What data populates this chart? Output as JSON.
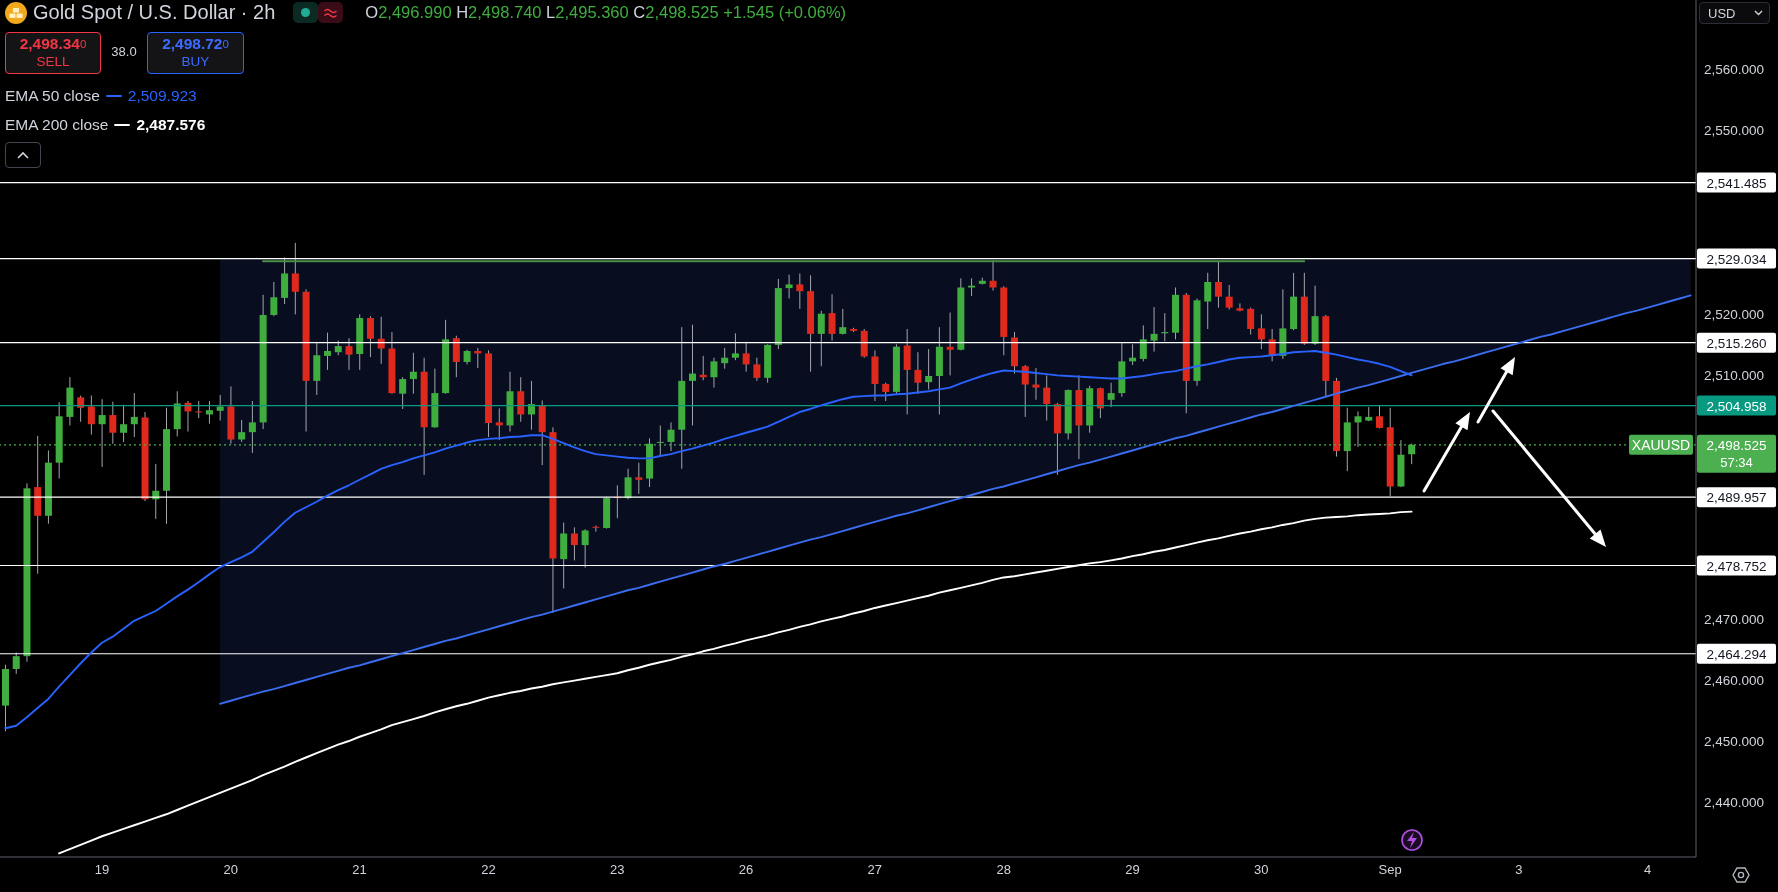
{
  "chart_data": {
    "type": "candlestick",
    "title": "Gold Spot / U.S. Dollar · 2h",
    "ylabel": "USD",
    "categories": [
      null,
      null,
      null,
      null,
      null,
      null,
      null,
      null,
      null,
      "19",
      null,
      null,
      null,
      null,
      null,
      null,
      null,
      null,
      null,
      null,
      null,
      "20",
      null,
      null,
      null,
      null,
      null,
      null,
      null,
      null,
      null,
      null,
      null,
      "21",
      null,
      null,
      null,
      null,
      null,
      null,
      null,
      null,
      null,
      null,
      null,
      "22",
      null,
      null,
      null,
      null,
      null,
      null,
      null,
      null,
      null,
      null,
      null,
      "23",
      null,
      null,
      null,
      null,
      null,
      null,
      null,
      null,
      null,
      null,
      null,
      "26",
      null,
      null,
      null,
      null,
      null,
      null,
      null,
      null,
      null,
      null,
      null,
      "27",
      null,
      null,
      null,
      null,
      null,
      null,
      null,
      null,
      null,
      null,
      null,
      "28",
      null,
      null,
      null,
      null,
      null,
      null,
      null,
      null,
      null,
      null,
      null,
      "29",
      null,
      null,
      null,
      null,
      null,
      null,
      null,
      null,
      null,
      null,
      null,
      "30",
      null,
      null,
      null,
      null,
      null,
      null,
      null,
      null,
      null,
      null,
      null,
      "Sep",
      null,
      null,
      null,
      null,
      null,
      null,
      null,
      null,
      null,
      null,
      null,
      "3",
      null,
      null,
      null,
      null,
      null,
      null,
      null,
      null,
      null,
      null,
      null,
      "4",
      null,
      null,
      null,
      null
    ],
    "ohlc": [
      [
        2455.8,
        2462.5,
        2451.6,
        2461.8
      ],
      [
        2461.8,
        2464.5,
        2461.0,
        2463.9
      ],
      [
        2463.9,
        2492.2,
        2463.0,
        2491.4
      ],
      [
        2491.6,
        2500.0,
        2477.4,
        2486.9
      ],
      [
        2486.9,
        2497.6,
        2485.6,
        2495.6
      ],
      [
        2495.6,
        2505.5,
        2493.0,
        2503.2
      ],
      [
        2503.1,
        2509.6,
        2501.7,
        2507.9
      ],
      [
        2506.3,
        2506.6,
        2502.3,
        2504.6
      ],
      [
        2504.8,
        2506.6,
        2500.2,
        2501.9
      ],
      [
        2501.9,
        2506.0,
        2494.9,
        2503.4
      ],
      [
        2503.4,
        2505.6,
        2498.7,
        2500.5
      ],
      [
        2500.5,
        2505.1,
        2499.0,
        2501.9
      ],
      [
        2501.9,
        2507.0,
        2499.8,
        2503.1
      ],
      [
        2503.0,
        2503.9,
        2489.3,
        2489.6
      ],
      [
        2489.6,
        2495.4,
        2486.4,
        2491.0
      ],
      [
        2491.0,
        2504.6,
        2485.6,
        2501.1
      ],
      [
        2501.1,
        2507.3,
        2499.9,
        2505.3
      ],
      [
        2505.4,
        2505.7,
        2500.7,
        2504.0
      ],
      [
        2504.0,
        2505.7,
        2502.9,
        2503.9
      ],
      [
        2503.5,
        2505.7,
        2502.0,
        2504.2
      ],
      [
        2504.1,
        2506.7,
        2502.5,
        2504.8
      ],
      [
        2504.8,
        2508.1,
        2498.7,
        2499.4
      ],
      [
        2499.4,
        2502.6,
        2499.0,
        2500.6
      ],
      [
        2500.6,
        2505.7,
        2497.2,
        2502.2
      ],
      [
        2502.2,
        2523.1,
        2501.1,
        2519.8
      ],
      [
        2519.8,
        2525.2,
        2519.6,
        2522.7
      ],
      [
        2522.6,
        2529.2,
        2521.6,
        2526.6
      ],
      [
        2526.6,
        2531.6,
        2519.9,
        2523.6
      ],
      [
        2523.6,
        2524.0,
        2500.7,
        2509.0
      ],
      [
        2509.0,
        2515.4,
        2506.7,
        2513.2
      ],
      [
        2513.1,
        2516.9,
        2510.8,
        2513.9
      ],
      [
        2513.7,
        2515.6,
        2513.2,
        2514.7
      ],
      [
        2514.7,
        2516.0,
        2510.8,
        2513.3
      ],
      [
        2513.4,
        2519.9,
        2510.8,
        2519.3
      ],
      [
        2519.3,
        2519.6,
        2512.9,
        2515.9
      ],
      [
        2515.9,
        2519.5,
        2511.8,
        2514.3
      ],
      [
        2514.3,
        2517.0,
        2506.9,
        2507.0
      ],
      [
        2506.9,
        2509.6,
        2504.4,
        2509.3
      ],
      [
        2509.3,
        2513.6,
        2506.9,
        2510.5
      ],
      [
        2510.5,
        2512.8,
        2493.6,
        2501.4
      ],
      [
        2501.4,
        2511.0,
        2501.3,
        2507.0
      ],
      [
        2507.0,
        2519.0,
        2506.9,
        2515.8
      ],
      [
        2516.0,
        2516.4,
        2509.6,
        2512.1
      ],
      [
        2512.1,
        2514.1,
        2511.7,
        2513.9
      ],
      [
        2513.9,
        2514.4,
        2511.1,
        2513.5
      ],
      [
        2513.5,
        2514.0,
        2499.8,
        2502.1
      ],
      [
        2502.2,
        2504.5,
        2499.3,
        2501.7
      ],
      [
        2501.7,
        2510.5,
        2500.7,
        2507.3
      ],
      [
        2507.3,
        2509.6,
        2502.3,
        2503.5
      ],
      [
        2503.5,
        2509.0,
        2501.0,
        2505.2
      ],
      [
        2505.0,
        2505.8,
        2495.2,
        2500.6
      ],
      [
        2500.6,
        2501.4,
        2471.0,
        2479.9
      ],
      [
        2479.8,
        2485.8,
        2475.0,
        2484.0
      ],
      [
        2484.0,
        2485.0,
        2479.6,
        2482.1
      ],
      [
        2482.1,
        2484.7,
        2478.4,
        2484.5
      ],
      [
        2485.1,
        2485.3,
        2484.3,
        2485.0
      ],
      [
        2484.9,
        2490.0,
        2484.8,
        2489.8
      ],
      [
        2490.0,
        2491.9,
        2486.5,
        2489.8
      ],
      [
        2489.8,
        2494.6,
        2489.6,
        2493.2
      ],
      [
        2493.2,
        2495.6,
        2490.5,
        2492.8
      ],
      [
        2493.0,
        2499.6,
        2491.6,
        2498.7
      ],
      [
        2498.9,
        2501.7,
        2496.6,
        2499.0
      ],
      [
        2499.0,
        2502.2,
        2497.5,
        2501.0
      ],
      [
        2501.0,
        2517.8,
        2494.6,
        2509.0
      ],
      [
        2509.0,
        2518.2,
        2501.7,
        2510.2
      ],
      [
        2510.0,
        2513.1,
        2509.1,
        2509.6
      ],
      [
        2509.6,
        2512.8,
        2507.9,
        2512.2
      ],
      [
        2511.9,
        2514.4,
        2511.0,
        2512.8
      ],
      [
        2512.8,
        2516.8,
        2512.4,
        2513.5
      ],
      [
        2513.5,
        2515.4,
        2510.5,
        2511.7
      ],
      [
        2511.7,
        2512.8,
        2509.0,
        2509.5
      ],
      [
        2509.5,
        2515.0,
        2508.7,
        2514.9
      ],
      [
        2514.9,
        2525.7,
        2514.2,
        2524.2
      ],
      [
        2524.2,
        2526.4,
        2522.5,
        2524.8
      ],
      [
        2524.8,
        2526.6,
        2520.8,
        2523.7
      ],
      [
        2523.7,
        2526.3,
        2510.5,
        2516.7
      ],
      [
        2516.7,
        2520.5,
        2511.4,
        2520.0
      ],
      [
        2520.1,
        2523.2,
        2515.6,
        2516.7
      ],
      [
        2516.7,
        2520.8,
        2516.6,
        2517.8
      ],
      [
        2517.5,
        2517.7,
        2517.0,
        2517.2
      ],
      [
        2517.2,
        2517.5,
        2512.8,
        2513.0
      ],
      [
        2513.0,
        2514.0,
        2505.7,
        2508.5
      ],
      [
        2508.5,
        2508.7,
        2505.7,
        2507.2
      ],
      [
        2507.2,
        2515.0,
        2506.9,
        2514.6
      ],
      [
        2514.8,
        2517.5,
        2503.5,
        2510.8
      ],
      [
        2510.8,
        2513.7,
        2506.9,
        2508.7
      ],
      [
        2508.8,
        2514.2,
        2507.6,
        2509.8
      ],
      [
        2509.8,
        2517.8,
        2503.5,
        2514.6
      ],
      [
        2514.6,
        2520.2,
        2509.9,
        2514.1
      ],
      [
        2514.1,
        2525.8,
        2514.0,
        2524.3
      ],
      [
        2524.3,
        2525.8,
        2522.9,
        2524.6
      ],
      [
        2524.9,
        2525.9,
        2524.8,
        2525.4
      ],
      [
        2525.4,
        2528.8,
        2523.8,
        2524.3
      ],
      [
        2524.3,
        2524.5,
        2513.2,
        2516.2
      ],
      [
        2516.1,
        2517.0,
        2510.2,
        2511.4
      ],
      [
        2511.4,
        2511.6,
        2503.1,
        2508.4
      ],
      [
        2508.4,
        2511.1,
        2505.9,
        2507.9
      ],
      [
        2507.9,
        2509.9,
        2502.5,
        2505.2
      ],
      [
        2505.2,
        2505.4,
        2493.6,
        2500.4
      ],
      [
        2500.4,
        2507.6,
        2499.4,
        2507.5
      ],
      [
        2507.5,
        2509.9,
        2496.2,
        2501.7
      ],
      [
        2501.7,
        2508.2,
        2500.5,
        2507.8
      ],
      [
        2507.8,
        2507.9,
        2502.9,
        2504.5
      ],
      [
        2505.9,
        2508.7,
        2504.7,
        2507.0
      ],
      [
        2507.0,
        2515.2,
        2506.4,
        2512.2
      ],
      [
        2512.2,
        2515.0,
        2511.6,
        2512.8
      ],
      [
        2512.6,
        2518.1,
        2512.2,
        2515.8
      ],
      [
        2515.6,
        2521.1,
        2513.8,
        2516.7
      ],
      [
        2516.8,
        2520.1,
        2515.5,
        2517.0
      ],
      [
        2516.9,
        2524.3,
        2515.8,
        2523.1
      ],
      [
        2523.1,
        2523.4,
        2503.7,
        2509.0
      ],
      [
        2509.0,
        2522.5,
        2508.2,
        2522.2
      ],
      [
        2522.0,
        2526.7,
        2517.5,
        2525.2
      ],
      [
        2525.2,
        2528.5,
        2521.0,
        2522.8
      ],
      [
        2522.8,
        2524.7,
        2520.7,
        2521.0
      ],
      [
        2520.9,
        2521.7,
        2520.4,
        2520.5
      ],
      [
        2520.8,
        2521.0,
        2516.6,
        2517.5
      ],
      [
        2517.6,
        2519.9,
        2514.2,
        2515.8
      ],
      [
        2515.8,
        2517.5,
        2512.2,
        2513.1
      ],
      [
        2513.1,
        2524.0,
        2512.6,
        2517.6
      ],
      [
        2517.5,
        2526.7,
        2517.3,
        2522.8
      ],
      [
        2522.8,
        2526.7,
        2514.9,
        2515.1
      ],
      [
        2515.1,
        2524.6,
        2514.9,
        2519.6
      ],
      [
        2519.6,
        2519.8,
        2506.4,
        2509.0
      ],
      [
        2509.0,
        2509.5,
        2496.6,
        2497.5
      ],
      [
        2497.5,
        2504.6,
        2494.2,
        2502.2
      ],
      [
        2502.2,
        2504.0,
        2498.2,
        2503.2
      ],
      [
        2502.5,
        2504.7,
        2502.4,
        2503.1
      ],
      [
        2503.2,
        2504.9,
        2501.2,
        2501.3
      ],
      [
        2501.4,
        2504.6,
        2490.1,
        2491.7
      ],
      [
        2491.7,
        2499.3,
        2491.6,
        2496.9
      ],
      [
        2496.99,
        2498.74,
        2495.36,
        2498.525
      ],
      null,
      null,
      null,
      null,
      null,
      null,
      null,
      null,
      null,
      null,
      null,
      null,
      null,
      null,
      null,
      null,
      null,
      null,
      null,
      null,
      null,
      null,
      null,
      null,
      null,
      null
    ],
    "colors": [
      "#3fae3f",
      "#3fae3f",
      "#3fae3f",
      "#e0291d",
      "#3fae3f",
      "#3fae3f",
      "#3fae3f",
      "#e0291d",
      "#e0291d",
      "#3fae3f",
      "#e0291d",
      "#3fae3f",
      "#3fae3f",
      "#e0291d",
      "#3fae3f",
      "#3fae3f",
      "#3fae3f",
      "#e0291d",
      "#e0291d",
      "#3fae3f",
      "#3fae3f",
      "#e0291d",
      "#3fae3f",
      "#3fae3f",
      "#3fae3f",
      "#3fae3f",
      "#3fae3f",
      "#e0291d",
      "#e0291d",
      "#3fae3f",
      "#3fae3f",
      "#3fae3f",
      "#e0291d",
      "#3fae3f",
      "#e0291d",
      "#e0291d",
      "#e0291d",
      "#3fae3f",
      "#3fae3f",
      "#e0291d",
      "#3fae3f",
      "#3fae3f",
      "#e0291d",
      "#3fae3f",
      "#e0291d",
      "#e0291d",
      "#e0291d",
      "#3fae3f",
      "#e0291d",
      "#3fae3f",
      "#e0291d",
      "#e0291d",
      "#3fae3f",
      "#e0291d",
      "#3fae3f",
      "#e0291d",
      "#3fae3f",
      "#e0291d",
      "#3fae3f",
      "#e0291d",
      "#3fae3f",
      "#3fae3f",
      "#3fae3f",
      "#3fae3f",
      "#3fae3f",
      "#e0291d",
      "#3fae3f",
      "#3fae3f",
      "#3fae3f",
      "#e0291d",
      "#e0291d",
      "#3fae3f",
      "#3fae3f",
      "#3fae3f",
      "#e0291d",
      "#e0291d",
      "#3fae3f",
      "#e0291d",
      "#3fae3f",
      "#e0291d",
      "#e0291d",
      "#e0291d",
      "#e0291d",
      "#3fae3f",
      "#e0291d",
      "#e0291d",
      "#3fae3f",
      "#3fae3f",
      "#e0291d",
      "#3fae3f",
      "#3fae3f",
      "#3fae3f",
      "#e0291d",
      "#e0291d",
      "#e0291d",
      "#e0291d",
      "#e0291d",
      "#e0291d",
      "#e0291d",
      "#3fae3f",
      "#e0291d",
      "#3fae3f",
      "#e0291d",
      "#3fae3f",
      "#3fae3f",
      "#3fae3f",
      "#3fae3f",
      "#3fae3f",
      "#3fae3f",
      "#3fae3f",
      "#e0291d",
      "#3fae3f",
      "#3fae3f",
      "#e0291d",
      "#e0291d",
      "#e0291d",
      "#e0291d",
      "#e0291d",
      "#e0291d",
      "#3fae3f",
      "#3fae3f",
      "#e0291d",
      "#3fae3f",
      "#e0291d",
      "#e0291d",
      "#3fae3f",
      "#3fae3f",
      "#3fae3f",
      "#e0291d",
      "#e0291d",
      "#3fae3f",
      "#3fae3f",
      null,
      null,
      null,
      null,
      null,
      null,
      null,
      null,
      null,
      null,
      null,
      null,
      null,
      null,
      null,
      null,
      null,
      null,
      null,
      null,
      null,
      null,
      null,
      null,
      null,
      null
    ],
    "series": [
      {
        "type": "line",
        "color": "#3a6df0",
        "values": [
          null,
          null,
          null,
          null,
          null,
          null,
          null,
          null,
          null,
          null,
          null,
          null,
          null,
          null,
          null,
          null,
          null,
          null,
          null,
          null,
          2456.1,
          2456.6,
          2457.1,
          2457.6,
          2458.1,
          2458.5,
          2459.0,
          2459.5,
          2460.0,
          2460.5,
          2461.0,
          2461.5,
          2462.0,
          2462.4,
          2462.9,
          2463.4,
          2463.9,
          2464.4,
          2464.9,
          2465.4,
          2465.9,
          2466.4,
          2466.8,
          2467.3,
          2467.8,
          2468.3,
          2468.8,
          2469.3,
          2469.8,
          2470.3,
          2470.7,
          2471.2,
          2471.7,
          2472.2,
          2472.7,
          2473.2,
          2473.7,
          2474.2,
          2474.7,
          2475.1,
          2475.6,
          2476.1,
          2476.6,
          2477.1,
          2477.6,
          2478.1,
          2478.6,
          2479.0,
          2479.5,
          2480.0,
          2480.5,
          2481.0,
          2481.5,
          2482.0,
          2482.5,
          2483.0,
          2483.4,
          2483.9,
          2484.4,
          2484.9,
          2485.4,
          2485.9,
          2486.4,
          2486.9,
          2487.3,
          2487.8,
          2488.3,
          2488.8,
          2489.3,
          2489.8,
          2490.3,
          2490.8,
          2491.3,
          2491.7,
          2492.2,
          2492.7,
          2493.2,
          2493.7,
          2494.2,
          2494.7,
          2495.2,
          2495.6,
          2496.1,
          2496.6,
          2497.1,
          2497.6,
          2498.1,
          2498.6,
          2499.1,
          2499.6,
          2500.0,
          2500.5,
          2501.0,
          2501.5,
          2502.0,
          2502.5,
          2503.0,
          2503.5,
          2503.9,
          2504.4,
          2504.9,
          2505.4,
          2505.9,
          2506.4,
          2506.9,
          2507.4,
          2507.9,
          2508.3,
          2508.8,
          2509.3,
          2509.8,
          2510.3,
          2510.8,
          2511.3,
          2511.8,
          2512.2,
          2512.7,
          2513.2,
          2513.7,
          2514.2,
          2514.7,
          2515.2,
          2515.7,
          2516.2,
          2516.6,
          2517.1,
          2517.6,
          2518.1,
          2518.6,
          2519.1,
          2519.6,
          2520.1,
          2520.5,
          2521.0,
          2521.5,
          2522.0,
          2522.5,
          2523.0
        ],
        "lower": [
          null,
          null,
          null,
          null,
          null,
          null,
          null,
          null,
          null,
          null,
          null,
          null,
          null,
          null,
          null,
          null,
          null,
          null,
          null,
          null,
          2456.1,
          2456.6,
          2457.1,
          2457.6,
          2458.1,
          2458.5,
          2459.0,
          2459.5,
          2460.0,
          2460.5,
          2461.0,
          2461.5,
          2462.0,
          2462.4,
          2462.9,
          2463.4,
          2463.9,
          2464.4,
          2464.9,
          2465.4,
          2465.9,
          2466.4,
          2466.8,
          2467.3,
          2467.8,
          2468.3,
          2468.8,
          2469.3,
          2469.8,
          2470.3,
          2470.7,
          2471.2,
          2471.7,
          2472.2,
          2472.7,
          2473.2,
          2473.7,
          2474.2,
          2474.7,
          2475.1,
          2475.6,
          2476.1,
          2476.6,
          2477.1,
          2477.6,
          2478.1,
          2478.6,
          2479.0,
          2479.5,
          2480.0,
          2480.5,
          2481.0,
          2481.5,
          2482.0,
          2482.5,
          2483.0,
          2483.4,
          2483.9,
          2484.4,
          2484.9,
          2485.4,
          2485.9,
          2486.4,
          2486.9,
          2487.3,
          2487.8,
          2488.3,
          2488.8,
          2489.3,
          2489.8,
          2490.3,
          2490.8,
          2491.3,
          2491.7,
          2492.2,
          2492.7,
          2493.2,
          2493.7,
          2494.2,
          2494.7,
          2495.2,
          2495.6,
          2496.1,
          2496.6,
          2497.1,
          2497.6,
          2498.1,
          2498.6,
          2499.1,
          2499.6,
          2500.0,
          2500.5,
          2501.0,
          2501.5,
          2502.0,
          2502.5,
          2503.0,
          2503.5,
          2503.9,
          2504.4,
          2504.9,
          2505.4,
          2505.9,
          2506.4,
          2506.9,
          2507.4,
          2507.9,
          2508.3,
          2508.8,
          2509.3,
          2509.8,
          2510.3,
          2510.8,
          2511.3,
          2511.8,
          2512.2,
          2512.7,
          2513.2,
          2513.7,
          2514.2,
          2514.7,
          2515.2,
          2515.7,
          2516.2,
          2516.6,
          2517.1,
          2517.6,
          2518.1,
          2518.6,
          2519.1,
          2519.6,
          2520.1,
          2520.5,
          2521.0,
          2521.5,
          2522.0,
          2522.5,
          2523.0
        ],
        "upper": [
          null,
          null,
          null,
          null,
          null,
          null,
          null,
          null,
          null,
          null,
          null,
          null,
          null,
          null,
          null,
          null,
          null,
          null,
          null,
          null,
          2529.0,
          2529.0,
          2529.0,
          2529.0,
          2529.0,
          2529.0,
          2529.0,
          2529.0,
          2529.0,
          2529.0,
          2529.0,
          2529.0,
          2529.0,
          2529.0,
          2529.0,
          2529.0,
          2529.0,
          2529.0,
          2529.0,
          2529.0,
          2529.0,
          2529.0,
          2529.0,
          2529.0,
          2529.0,
          2529.0,
          2529.0,
          2529.0,
          2529.0,
          2529.0,
          2529.0,
          2529.0,
          2529.0,
          2529.0,
          2529.0,
          2529.0,
          2529.0,
          2529.0,
          2529.0,
          2529.0,
          2529.0,
          2529.0,
          2529.0,
          2529.0,
          2529.0,
          2529.0,
          2529.0,
          2529.0,
          2529.0,
          2529.0,
          2529.0,
          2529.0,
          2529.0,
          2529.0,
          2529.0,
          2529.0,
          2529.0,
          2529.0,
          2529.0,
          2529.0,
          2529.0,
          2529.0,
          2529.0,
          2529.0,
          2529.0,
          2529.0,
          2529.0,
          2529.0,
          2529.0,
          2529.0,
          2529.0,
          2529.0,
          2529.0,
          2529.0,
          2529.0,
          2529.0,
          2529.0,
          2529.0,
          2529.0,
          2529.0,
          2529.0,
          2529.0,
          2529.0,
          2529.0,
          2529.0,
          2529.0,
          2529.0,
          2529.0,
          2529.0,
          2529.0,
          2529.0,
          2529.0,
          2529.0,
          2529.0,
          2529.0,
          2529.0,
          2529.0,
          2529.0,
          2529.0,
          2529.0,
          2529.0,
          2529.0,
          2529.0,
          2529.0,
          2529.0,
          2529.0,
          2529.0,
          2529.0,
          2529.0,
          2529.0,
          2529.0,
          2529.0,
          2529.0,
          2529.0,
          2529.0,
          2529.0,
          2529.0,
          2529.0,
          2529.0,
          2529.0,
          2529.0,
          2529.0,
          2529.0,
          2529.0,
          2529.0,
          2529.0,
          2529.0,
          2529.0,
          2529.0,
          2529.0,
          2529.0,
          2529.0,
          2529.0,
          2529.0,
          2529.0,
          2529.0,
          2529.0,
          2529.0
        ]
      },
      {
        "type": "line",
        "color": "#4a8f46",
        "values": [
          null,
          null,
          null,
          null,
          null,
          null,
          null,
          null,
          null,
          null,
          null,
          null,
          null,
          null,
          null,
          null,
          null,
          null,
          null,
          null,
          null,
          null,
          null,
          null,
          2528.6,
          2528.6,
          2528.6,
          2528.6,
          2528.6,
          2528.6,
          2528.6,
          2528.6,
          2528.6,
          2528.6,
          2528.6,
          2528.6,
          2528.6,
          2528.6,
          2528.6,
          2528.6,
          2528.6,
          2528.6,
          2528.6,
          2528.6,
          2528.6,
          2528.6,
          2528.6,
          2528.6,
          2528.6,
          2528.6,
          2528.6,
          2528.6,
          2528.6,
          2528.6,
          2528.6,
          2528.6,
          2528.6,
          2528.6,
          2528.6,
          2528.6,
          2528.6,
          2528.6,
          2528.6,
          2528.6,
          2528.6,
          2528.6,
          2528.6,
          2528.6,
          2528.6,
          2528.6,
          2528.6,
          2528.6,
          2528.6,
          2528.6,
          2528.6,
          2528.6,
          2528.6,
          2528.6,
          2528.6,
          2528.6,
          2528.6,
          2528.6,
          2528.6,
          2528.6,
          2528.6,
          2528.6,
          2528.6,
          2528.6,
          2528.6,
          2528.6,
          2528.6,
          2528.6,
          2528.6,
          2528.6,
          2528.6,
          2528.6,
          2528.6,
          2528.6,
          2528.6,
          2528.6,
          2528.6,
          2528.6,
          2528.6,
          2528.6,
          2528.6,
          2528.6,
          2528.6,
          2528.6,
          2528.6,
          2528.6,
          2528.6,
          2528.6,
          2528.6,
          2528.6,
          2528.6,
          2528.6,
          2528.6,
          2528.6,
          2528.6,
          2528.6,
          2528.6,
          2528.6,
          null,
          null,
          null,
          null,
          null,
          null,
          null,
          null,
          null,
          null,
          null,
          null,
          null,
          null,
          null,
          null,
          null,
          null,
          null,
          null,
          null,
          null,
          null,
          null,
          null,
          null,
          null,
          null,
          null,
          null,
          null,
          null,
          null,
          null,
          null,
          null
        ]
      },
      {
        "type": "line",
        "name": "EMA 50 close",
        "color": "#2962ff",
        "values": [
          2452.1,
          2452.5,
          2453.9,
          2455.4,
          2456.9,
          2458.9,
          2460.8,
          2462.7,
          2464.5,
          2466.1,
          2467.1,
          2468.4,
          2469.7,
          2470.5,
          2471.3,
          2472.5,
          2473.7,
          2474.8,
          2476.0,
          2477.3,
          2478.5,
          2479.3,
          2480.1,
          2481.0,
          2482.6,
          2484.2,
          2485.9,
          2487.4,
          2488.3,
          2489.2,
          2490.2,
          2491.1,
          2491.9,
          2492.8,
          2493.7,
          2494.6,
          2495.2,
          2495.7,
          2496.3,
          2496.8,
          2497.3,
          2497.9,
          2498.4,
          2498.9,
          2499.3,
          2499.5,
          2499.6,
          2499.8,
          2499.9,
          2500.1,
          2500.1,
          2499.5,
          2498.8,
          2498.1,
          2497.5,
          2497.0,
          2496.8,
          2496.6,
          2496.4,
          2496.3,
          2496.3,
          2496.7,
          2497.0,
          2497.5,
          2497.9,
          2498.4,
          2498.9,
          2499.5,
          2500.0,
          2500.5,
          2501.0,
          2501.5,
          2502.3,
          2503.1,
          2503.9,
          2504.4,
          2505.0,
          2505.5,
          2506.0,
          2506.4,
          2506.5,
          2506.6,
          2506.6,
          2506.8,
          2506.9,
          2507.1,
          2507.3,
          2507.6,
          2507.9,
          2508.6,
          2509.2,
          2509.8,
          2510.3,
          2510.7,
          2510.6,
          2510.5,
          2510.3,
          2510.1,
          2509.9,
          2509.8,
          2509.7,
          2509.6,
          2509.5,
          2509.4,
          2509.4,
          2509.6,
          2509.8,
          2510.1,
          2510.4,
          2510.6,
          2511.0,
          2511.4,
          2511.7,
          2512.1,
          2512.5,
          2512.8,
          2512.9,
          2513.0,
          2513.2,
          2513.4,
          2513.7,
          2513.8,
          2513.9,
          2513.6,
          2513.3,
          2512.9,
          2512.5,
          2512.2,
          2511.8,
          2511.3,
          2510.6,
          2509.923,
          null,
          null,
          null,
          null,
          null,
          null,
          null,
          null,
          null,
          null,
          null,
          null,
          null,
          null,
          null,
          null,
          null,
          null,
          null,
          null,
          null,
          null,
          null,
          null,
          null,
          null
        ]
      },
      {
        "type": "line",
        "name": "EMA 200 close",
        "color": "#ffffff",
        "values": [
          null,
          null,
          null,
          null,
          null,
          2431.6,
          2432.3,
          2433.0,
          2433.7,
          2434.4,
          2435.0,
          2435.6,
          2436.2,
          2436.8,
          2437.4,
          2438.0,
          2438.7,
          2439.4,
          2440.1,
          2440.8,
          2441.5,
          2442.2,
          2442.9,
          2443.6,
          2444.4,
          2445.1,
          2445.8,
          2446.6,
          2447.3,
          2448.0,
          2448.7,
          2449.4,
          2450.0,
          2450.7,
          2451.3,
          2451.9,
          2452.6,
          2453.1,
          2453.6,
          2454.1,
          2454.7,
          2455.2,
          2455.7,
          2456.1,
          2456.6,
          2457.1,
          2457.5,
          2457.9,
          2458.2,
          2458.6,
          2458.9,
          2459.3,
          2459.6,
          2459.9,
          2460.2,
          2460.5,
          2460.8,
          2461.1,
          2461.6,
          2462.0,
          2462.5,
          2462.9,
          2463.3,
          2463.8,
          2464.2,
          2464.7,
          2465.1,
          2465.6,
          2466.0,
          2466.5,
          2466.9,
          2467.3,
          2467.8,
          2468.2,
          2468.7,
          2469.1,
          2469.6,
          2470.0,
          2470.4,
          2470.9,
          2471.3,
          2471.8,
          2472.2,
          2472.6,
          2473.0,
          2473.4,
          2473.8,
          2474.3,
          2474.7,
          2475.1,
          2475.5,
          2475.9,
          2476.4,
          2476.8,
          2477.0,
          2477.3,
          2477.6,
          2477.9,
          2478.2,
          2478.5,
          2478.8,
          2479.1,
          2479.3,
          2479.6,
          2479.9,
          2480.3,
          2480.6,
          2481.0,
          2481.3,
          2481.7,
          2482.1,
          2482.5,
          2482.9,
          2483.2,
          2483.6,
          2484.0,
          2484.3,
          2484.7,
          2485.0,
          2485.4,
          2485.7,
          2486.1,
          2486.4,
          2486.6,
          2486.7,
          2486.8,
          2487.0,
          2487.1,
          2487.2,
          2487.3,
          2487.5,
          2487.576,
          null,
          null,
          null,
          null,
          null,
          null,
          null,
          null,
          null,
          null,
          null,
          null,
          null,
          null,
          null,
          null,
          null,
          null,
          null,
          null,
          null,
          null,
          null,
          null,
          null,
          null
        ]
      }
    ],
    "ylim": [
      2431.0,
      2571.4
    ],
    "yticks": [
      {
        "value": 2440,
        "label": "2,440.000"
      },
      {
        "value": 2450,
        "label": "2,450.000"
      },
      {
        "value": 2460,
        "label": "2,460.000"
      },
      {
        "value": 2470,
        "label": "2,470.000"
      },
      {
        "value": 2510,
        "label": "2,510.000"
      },
      {
        "value": 2520,
        "label": "2,520.000"
      },
      {
        "value": 2550,
        "label": "2,550.000"
      },
      {
        "value": 2560,
        "label": "2,560.000"
      }
    ],
    "ref_lines": [
      {
        "axis": "y",
        "value": 2541.485,
        "label": "2,541.485",
        "color": "#ffffff"
      },
      {
        "axis": "y",
        "value": 2529.034,
        "label": "2,529.034",
        "color": "#ffffff"
      },
      {
        "axis": "y",
        "value": 2515.26,
        "label": "2,515.260",
        "color": "#ffffff"
      },
      {
        "axis": "y",
        "value": 2504.958,
        "label": "2,504.958",
        "color": "#089981"
      },
      {
        "axis": "y",
        "value": 2498.525,
        "label": "2,498.525",
        "color": "#4caf50",
        "line_style": "dotted"
      },
      {
        "axis": "y",
        "value": 2489.957,
        "label": "2,489.957",
        "color": "#ffffff"
      },
      {
        "axis": "y",
        "value": 2478.752,
        "label": "2,478.752",
        "color": "#ffffff"
      },
      {
        "axis": "y",
        "value": 2464.294,
        "label": "2,464.294",
        "color": "#ffffff"
      }
    ],
    "annotations": [
      "O2,496.990 H2,498.740 L2,495.360 C2,498.525 +1.545 (+0.06%)",
      "2,498.340",
      "SELL",
      "38.0",
      "2,498.720",
      "BUY",
      "57:34",
      "2,509.923",
      "2,487.576",
      {
        "text": "XAUUSD",
        "y": 2498.525
      }
    ],
    "legend": "top left"
  }
}
